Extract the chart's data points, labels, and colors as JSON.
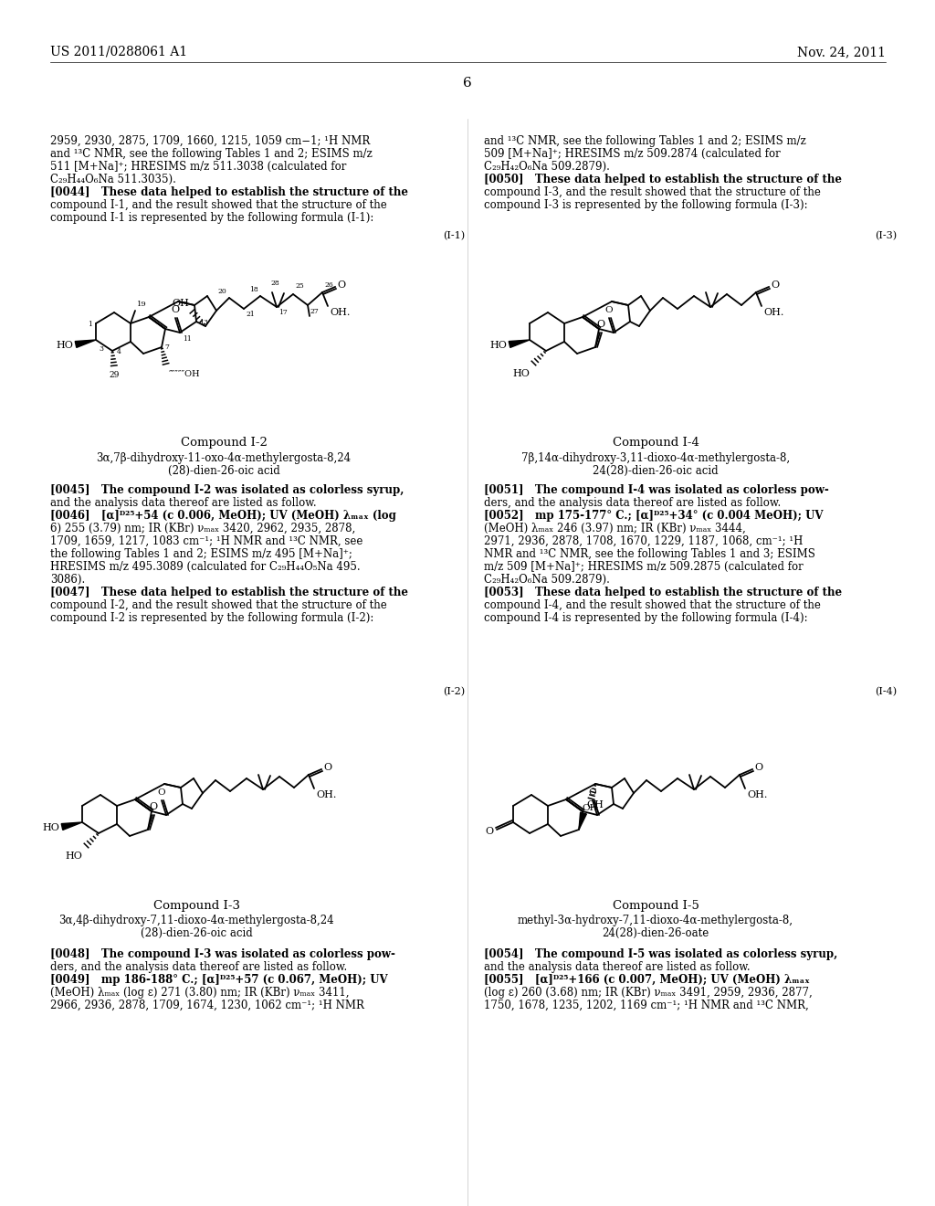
{
  "bg": "#ffffff",
  "header_left": "US 2011/0288061 A1",
  "header_right": "Nov. 24, 2011",
  "page_num": "6",
  "top_left": [
    [
      "n",
      "2959, 2930, 2875, 1709, 1660, 1215, 1059 cm−1; ¹H NMR"
    ],
    [
      "n",
      "and ¹³C NMR, see the following Tables 1 and 2; ESIMS m/z"
    ],
    [
      "n",
      "511 [M+Na]⁺; HRESIMS m/z 511.3038 (calculated for"
    ],
    [
      "n",
      "C₂₉H₄₄O₆Na 511.3035)."
    ],
    [
      "b",
      "[0044]   These data helped to establish the structure of the"
    ],
    [
      "n",
      "compound I-1, and the result showed that the structure of the"
    ],
    [
      "n",
      "compound I-1 is represented by the following formula (I-1):"
    ]
  ],
  "top_right": [
    [
      "n",
      "and ¹³C NMR, see the following Tables 1 and 2; ESIMS m/z"
    ],
    [
      "n",
      "509 [M+Na]⁺; HRESIMS m/z 509.2874 (calculated for"
    ],
    [
      "n",
      "C₂₉H₄₂O₆Na 509.2879)."
    ],
    [
      "b",
      "[0050]   These data helped to establish the structure of the"
    ],
    [
      "n",
      "compound I-3, and the result showed that the structure of the"
    ],
    [
      "n",
      "compound I-3 is represented by the following formula (I-3):"
    ]
  ],
  "mid_left_name": "Compound I-2",
  "mid_left_iupac1": "3α,7β-dihydroxy-11-oxo-4α-methylergosta-8,24",
  "mid_left_iupac2": "(28)-dien-26-oic acid",
  "mid_left_text": [
    [
      "b",
      "[0045]   The compound I-2 was isolated as colorless syrup,"
    ],
    [
      "n",
      "and the analysis data thereof are listed as follow."
    ],
    [
      "b",
      "[0046]   [α]ᴰ²⁵+54 (c 0.006, MeOH); UV (MeOH) λₘₐₓ (log"
    ],
    [
      "n",
      "6) 255 (3.79) nm; IR (KBr) νₘₐₓ 3420, 2962, 2935, 2878,"
    ],
    [
      "n",
      "1709, 1659, 1217, 1083 cm⁻¹; ¹H NMR and ¹³C NMR, see"
    ],
    [
      "n",
      "the following Tables 1 and 2; ESIMS m/z 495 [M+Na]⁺;"
    ],
    [
      "n",
      "HRESIMS m/z 495.3089 (calculated for C₂₉H₄₄O₅Na 495."
    ],
    [
      "n",
      "3086)."
    ],
    [
      "b",
      "[0047]   These data helped to establish the structure of the"
    ],
    [
      "n",
      "compound I-2, and the result showed that the structure of the"
    ],
    [
      "n",
      "compound I-2 is represented by the following formula (I-2):"
    ]
  ],
  "mid_right_name": "Compound I-4",
  "mid_right_iupac1": "7β,14α-dihydroxy-3,11-dioxo-4α-methylergosta-8,",
  "mid_right_iupac2": "24(28)-dien-26-oic acid",
  "mid_right_text": [
    [
      "b",
      "[0051]   The compound I-4 was isolated as colorless pow-"
    ],
    [
      "n",
      "ders, and the analysis data thereof are listed as follow."
    ],
    [
      "b",
      "[0052]   mp 175-177° C.; [α]ᴰ²⁵+34° (c 0.004 MeOH); UV"
    ],
    [
      "n",
      "(MeOH) λₘₐₓ 246 (3.97) nm; IR (KBr) νₘₐₓ 3444,"
    ],
    [
      "n",
      "2971, 2936, 2878, 1708, 1670, 1229, 1187, 1068, cm⁻¹; ¹H"
    ],
    [
      "n",
      "NMR and ¹³C NMR, see the following Tables 1 and 3; ESIMS"
    ],
    [
      "n",
      "m/z 509 [M+Na]⁺; HRESIMS m/z 509.2875 (calculated for"
    ],
    [
      "n",
      "C₂₉H₄₂O₆Na 509.2879)."
    ],
    [
      "b",
      "[0053]   These data helped to establish the structure of the"
    ],
    [
      "n",
      "compound I-4, and the result showed that the structure of the"
    ],
    [
      "n",
      "compound I-4 is represented by the following formula (I-4):"
    ]
  ],
  "bot_left_name": "Compound I-3",
  "bot_left_iupac1": "3α,4β-dihydroxy-7,11-dioxo-4α-methylergosta-8,24",
  "bot_left_iupac2": "(28)-dien-26-oic acid",
  "bot_left_text": [
    [
      "b",
      "[0048]   The compound I-3 was isolated as colorless pow-"
    ],
    [
      "n",
      "ders, and the analysis data thereof are listed as follow."
    ],
    [
      "b",
      "[0049]   mp 186-188° C.; [α]ᴰ²⁵+57 (c 0.067, MeOH); UV"
    ],
    [
      "n",
      "(MeOH) λₘₐₓ (log ε) 271 (3.80) nm; IR (KBr) νₘₐₓ 3411,"
    ],
    [
      "n",
      "2966, 2936, 2878, 1709, 1674, 1230, 1062 cm⁻¹; ¹H NMR"
    ]
  ],
  "bot_right_name": "Compound I-5",
  "bot_right_iupac1": "methyl-3α-hydroxy-7,11-dioxo-4α-methylergosta-8,",
  "bot_right_iupac2": "24(28)-dien-26-oate",
  "bot_right_text": [
    [
      "b",
      "[0054]   The compound I-5 was isolated as colorless syrup,"
    ],
    [
      "n",
      "and the analysis data thereof are listed as follow."
    ],
    [
      "b",
      "[0055]   [α]ᴰ²⁵+166 (c 0.007, MeOH); UV (MeOH) λₘₐₓ"
    ],
    [
      "n",
      "(log ε) 260 (3.68) nm; IR (KBr) νₘₐₓ 3491, 2959, 2936, 2877,"
    ],
    [
      "n",
      "1750, 1678, 1235, 1202, 1169 cm⁻¹; ¹H NMR and ¹³C NMR,"
    ]
  ]
}
